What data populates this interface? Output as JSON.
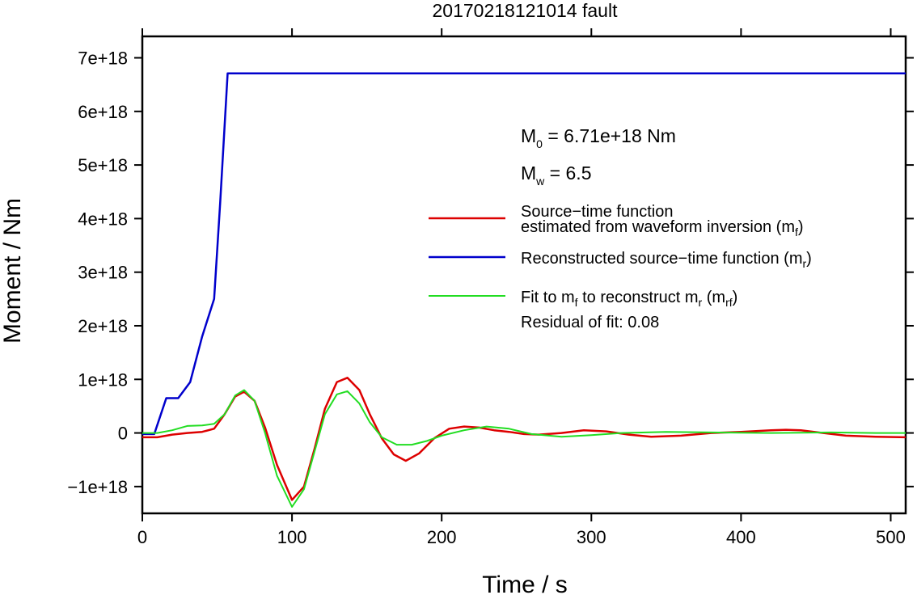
{
  "chart_data": {
    "type": "line",
    "title": "20170218121014 fault",
    "xlabel": "Time / s",
    "ylabel": "Moment / Nm",
    "xlim": [
      0,
      510
    ],
    "ylim": [
      -1.5e+18,
      7.4e+18
    ],
    "x_ticks": [
      0,
      100,
      200,
      300,
      400,
      500
    ],
    "x_tick_labels": [
      "0",
      "100",
      "200",
      "300",
      "400",
      "500"
    ],
    "y_ticks": [
      -1e+18,
      0,
      1e+18,
      2e+18,
      3e+18,
      4e+18,
      5e+18,
      6e+18,
      7e+18
    ],
    "y_tick_labels": [
      "−1e+18",
      "0",
      "1e+18",
      "2e+18",
      "3e+18",
      "4e+18",
      "5e+18",
      "6e+18",
      "7e+18"
    ],
    "grid": false,
    "legend_position": "right",
    "annotations": {
      "m0_sym": "M",
      "m0_sub": "0",
      "m0_value": " = 6.71e+18 Nm",
      "mw_sym": "M",
      "mw_sub": "w",
      "mw_value": " = 6.5",
      "residual": "Residual of fit: 0.08"
    },
    "legend": [
      {
        "line1": "Source−time function",
        "line2": "estimated from waveform inversion (m",
        "sub": "f",
        "suffix": ")"
      },
      {
        "line1": "Reconstructed source−time function (m",
        "sub": "r",
        "suffix": ")"
      },
      {
        "line1": "Fit to m",
        "sub": "f",
        "mid": " to reconstruct m",
        "sub2": "r",
        "mid2": " (m",
        "sub3": "rf",
        "suffix": ")"
      }
    ],
    "series": [
      {
        "name": "Source−time function estimated from waveform inversion (mf)",
        "color": "#dd0000",
        "x": [
          0,
          10,
          20,
          30,
          40,
          48,
          55,
          62,
          68,
          75,
          82,
          90,
          100,
          108,
          115,
          122,
          130,
          137,
          145,
          152,
          160,
          168,
          176,
          185,
          195,
          205,
          215,
          225,
          235,
          245,
          255,
          265,
          280,
          295,
          310,
          325,
          340,
          360,
          380,
          400,
          420,
          430,
          440,
          455,
          470,
          490,
          510
        ],
        "y": [
          -8e+16,
          -8e+16,
          -3e+16,
          0.0,
          2e+16,
          8e+16,
          3.5e+17,
          6.8e+17,
          7.7e+17,
          6e+17,
          1e+17,
          -6e+17,
          -1.25e+18,
          -1e+18,
          -3e+17,
          4.5e+17,
          9.5e+17,
          1.03e+18,
          8e+17,
          3.5e+17,
          -1e+17,
          -4e+17,
          -5.2e+17,
          -3.8e+17,
          -1e+17,
          8e+16,
          1.2e+17,
          1e+17,
          5e+16,
          2e+16,
          -2e+16,
          -3e+16,
          0.0,
          5e+16,
          3e+16,
          -3e+16,
          -7e+16,
          -5e+16,
          0.0,
          2e+16,
          5e+16,
          6e+16,
          5e+16,
          0.0,
          -5e+16,
          -7e+16,
          -8e+16
        ]
      },
      {
        "name": "Reconstructed source−time function (mr)",
        "color": "#0000cc",
        "x": [
          0,
          8,
          16,
          24,
          32,
          40,
          48,
          52,
          57,
          510
        ],
        "y": [
          -2e+16,
          -2e+16,
          6.5e+17,
          6.5e+17,
          9.5e+17,
          1.8e+18,
          2.5e+18,
          4.3e+18,
          6.71e+18,
          6.71e+18
        ]
      },
      {
        "name": "Fit to mf to reconstruct mr (mrf)",
        "color": "#22dd22",
        "x": [
          0,
          10,
          20,
          30,
          40,
          48,
          55,
          62,
          68,
          75,
          82,
          90,
          100,
          108,
          115,
          122,
          130,
          137,
          145,
          152,
          160,
          170,
          180,
          190,
          200,
          215,
          230,
          245,
          260,
          280,
          300,
          320,
          350,
          380,
          420,
          460,
          490,
          510
        ],
        "y": [
          0.0,
          0.0,
          5e+16,
          1.3e+17,
          1.4e+17,
          1.7e+17,
          3.5e+17,
          7e+17,
          8e+17,
          6e+17,
          0.0,
          -8e+17,
          -1.38e+18,
          -1.05e+18,
          -3.5e+17,
          3.5e+17,
          7.2e+17,
          7.8e+17,
          5.5e+17,
          2e+17,
          -8e+16,
          -2.2e+17,
          -2.2e+17,
          -1.5e+17,
          -5e+16,
          5e+16,
          1.2e+17,
          8e+16,
          -2e+16,
          -7e+16,
          -4e+16,
          0.0,
          2e+16,
          1e+16,
          0.0,
          1e+16,
          0.0,
          0.0
        ]
      }
    ]
  }
}
